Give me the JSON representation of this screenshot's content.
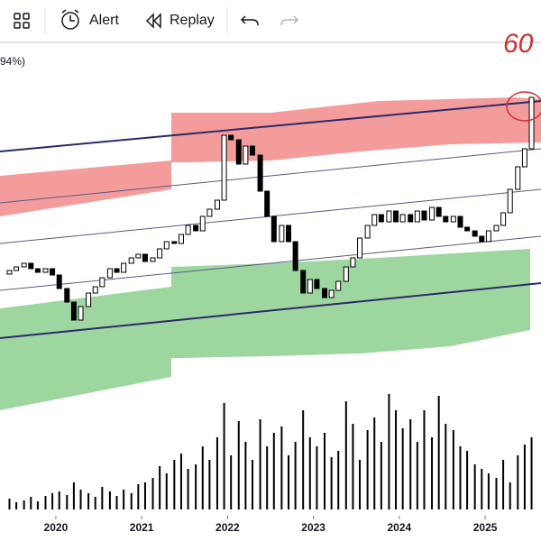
{
  "toolbar": {
    "alert": "Alert",
    "replay": "Replay"
  },
  "legend_fragment": "94%)",
  "annotation": "60",
  "chart_data": {
    "type": "candlestick",
    "x": [
      2019.38,
      2019.46,
      2019.54,
      2019.63,
      2019.71,
      2019.79,
      2019.88,
      2019.96,
      2020.04,
      2020.13,
      2020.21,
      2020.29,
      2020.38,
      2020.46,
      2020.54,
      2020.63,
      2020.71,
      2020.79,
      2020.88,
      2020.96,
      2021.04,
      2021.13,
      2021.21,
      2021.29,
      2021.38,
      2021.46,
      2021.54,
      2021.63,
      2021.71,
      2021.79,
      2021.88,
      2021.96,
      2022.04,
      2022.13,
      2022.21,
      2022.29,
      2022.38,
      2022.46,
      2022.54,
      2022.63,
      2022.71,
      2022.79,
      2022.88,
      2022.96,
      2023.04,
      2023.13,
      2023.21,
      2023.29,
      2023.38,
      2023.46,
      2023.54,
      2023.63,
      2023.71,
      2023.79,
      2023.88,
      2023.96,
      2024.04,
      2024.13,
      2024.21,
      2024.29,
      2024.38,
      2024.46,
      2024.54,
      2024.63,
      2024.71,
      2024.79,
      2024.88,
      2024.96,
      2025.04,
      2025.13,
      2025.21,
      2025.29,
      2025.38,
      2025.46,
      2025.54
    ],
    "values": [
      296,
      300,
      304,
      308,
      302,
      298,
      302,
      295,
      280,
      265,
      245,
      260,
      275,
      282,
      292,
      302,
      298,
      308,
      314,
      318,
      310,
      314,
      324,
      332,
      330,
      340,
      350,
      344,
      360,
      368,
      378,
      450,
      445,
      418,
      438,
      428,
      388,
      360,
      332,
      350,
      332,
      300,
      275,
      290,
      280,
      270,
      278,
      288,
      304,
      314,
      336,
      350,
      362,
      354,
      366,
      354,
      362,
      354,
      366,
      356,
      370,
      360,
      354,
      360,
      348,
      344,
      338,
      332,
      344,
      350,
      364,
      390,
      415,
      435,
      492
    ],
    "volume": [
      null,
      12,
      8,
      10,
      14,
      9,
      15,
      18,
      20,
      16,
      30,
      22,
      18,
      14,
      25,
      20,
      15,
      22,
      18,
      28,
      30,
      35,
      48,
      40,
      55,
      62,
      45,
      50,
      70,
      55,
      80,
      118,
      60,
      98,
      75,
      55,
      100,
      70,
      85,
      92,
      60,
      75,
      110,
      80,
      70,
      85,
      58,
      65,
      120,
      95,
      55,
      88,
      102,
      75,
      128,
      110,
      90,
      100,
      75,
      110,
      80,
      126,
      95,
      88,
      70,
      65,
      50,
      45,
      40,
      35,
      55,
      30,
      60,
      72,
      80
    ],
    "xlim": [
      2019.35,
      2025.65
    ],
    "xticks": [
      2020,
      2021,
      2022,
      2023,
      2024,
      2025
    ],
    "ylim": [
      0,
      600
    ],
    "volume_lim": [
      0,
      130
    ],
    "up_color": "#ffffff",
    "down_color": "#000000",
    "volume_color": "#000000"
  }
}
